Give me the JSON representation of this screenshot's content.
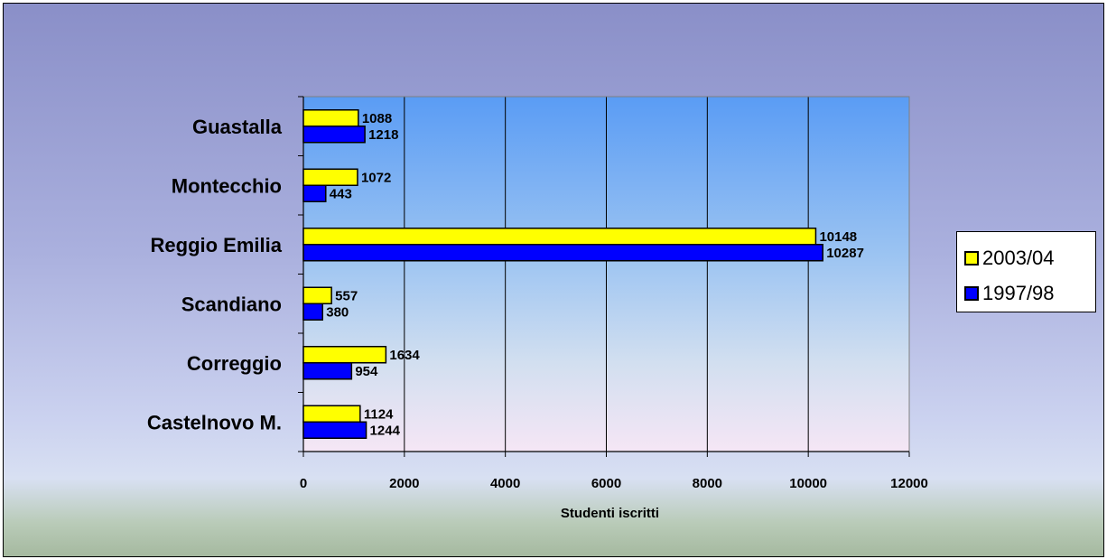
{
  "chart_data": {
    "type": "bar",
    "orientation": "horizontal",
    "categories": [
      "Guastalla",
      "Montecchio",
      "Reggio Emilia",
      "Scandiano",
      "Correggio",
      "Castelnovo M."
    ],
    "series": [
      {
        "name": "2003/04",
        "color": "#ffff00",
        "values": [
          1088,
          1072,
          10148,
          557,
          1634,
          1124
        ]
      },
      {
        "name": "1997/98",
        "color": "#0000ff",
        "values": [
          1218,
          443,
          10287,
          380,
          954,
          1244
        ]
      }
    ],
    "xlabel": "Studenti iscritti",
    "ylabel": "",
    "xlim": [
      0,
      12000
    ],
    "xticks": [
      0,
      2000,
      4000,
      6000,
      8000,
      10000,
      12000
    ],
    "grid": "vertical",
    "legend": "right",
    "data_labels": true
  }
}
